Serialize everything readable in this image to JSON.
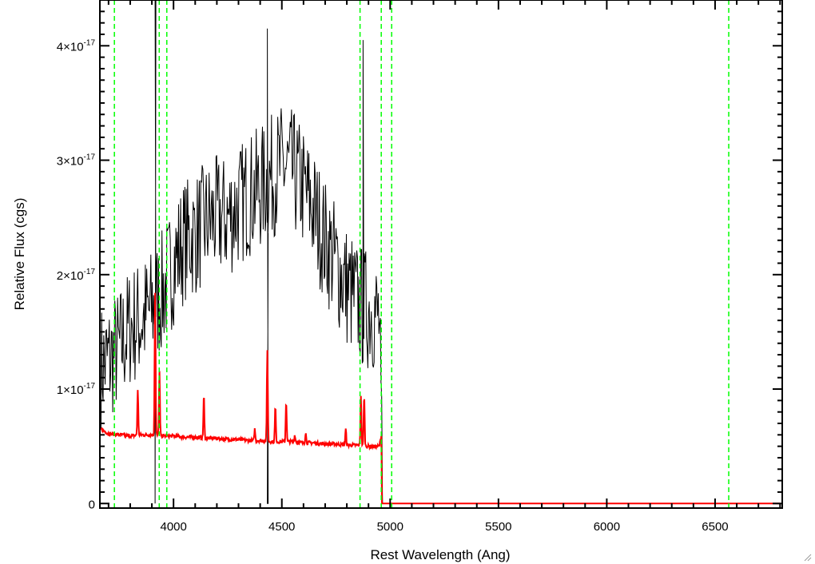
{
  "chart_data": {
    "type": "line",
    "title": "",
    "xlabel": "Rest Wavelength (Ang)",
    "ylabel": "Relative Flux (cgs)",
    "xlim": [
      3660,
      6810
    ],
    "ylim": [
      -4e-19,
      4.4e-17
    ],
    "x_ticks": [
      {
        "value": 4000,
        "label": "4000"
      },
      {
        "value": 4500,
        "label": "4500"
      },
      {
        "value": 5000,
        "label": "5000"
      },
      {
        "value": 5500,
        "label": "5500"
      },
      {
        "value": 6000,
        "label": "6000"
      },
      {
        "value": 6500,
        "label": "6500"
      }
    ],
    "y_ticks": [
      {
        "value": 0,
        "mantissa": "0",
        "exponent": ""
      },
      {
        "value": 1e-17,
        "mantissa": "1×10",
        "exponent": "-17"
      },
      {
        "value": 2e-17,
        "mantissa": "2×10",
        "exponent": "-17"
      },
      {
        "value": 3e-17,
        "mantissa": "3×10",
        "exponent": "-17"
      },
      {
        "value": 4e-17,
        "mantissa": "4×10",
        "exponent": "-17"
      }
    ],
    "grid": false,
    "series": [
      {
        "color": "#000000",
        "style": "noisy spectrum",
        "x": [
          3665,
          3700,
          3750,
          3800,
          3850,
          3900,
          3950,
          4000,
          4050,
          4100,
          4150,
          4200,
          4250,
          4300,
          4350,
          4400,
          4450,
          4500,
          4550,
          4600,
          4650,
          4700,
          4750,
          4800,
          4850,
          4880,
          4920,
          4950,
          4965,
          5000,
          5500,
          6000,
          6500,
          6800
        ],
        "y": [
          1.2e-17,
          1.25e-17,
          1.35e-17,
          1.55e-17,
          1.6e-17,
          1.7e-17,
          1.85e-17,
          2.1e-17,
          2.3e-17,
          2.35e-17,
          2.45e-17,
          2.5e-17,
          2.5e-17,
          2.6e-17,
          2.7e-17,
          2.75e-17,
          2.85e-17,
          2.95e-17,
          2.9e-17,
          2.75e-17,
          2.55e-17,
          2.3e-17,
          2.1e-17,
          1.9e-17,
          1.75e-17,
          1.7e-17,
          1.7e-17,
          1.6e-17,
          0,
          0,
          0,
          0,
          0,
          0
        ],
        "noise": 5.5e-18,
        "spikes": [
          {
            "x": 3915,
            "y": 4.4e-17
          },
          {
            "x": 3915,
            "y": 0.0
          },
          {
            "x": 4433,
            "y": 0.0
          },
          {
            "x": 4433,
            "y": 4.15e-17
          },
          {
            "x": 4875,
            "y": 4.05e-17
          }
        ]
      },
      {
        "color": "#ff0000",
        "style": "model fit",
        "x": [
          3665,
          3700,
          3750,
          3800,
          3850,
          3900,
          3950,
          4000,
          4050,
          4100,
          4150,
          4200,
          4250,
          4300,
          4350,
          4400,
          4450,
          4500,
          4550,
          4600,
          4650,
          4700,
          4750,
          4800,
          4850,
          4900,
          4950,
          4960,
          4962,
          5000,
          5500,
          6000,
          6500,
          6800
        ],
        "y": [
          6.5e-18,
          6.1e-18,
          6e-18,
          5.9e-18,
          6e-18,
          6e-18,
          5.9e-18,
          5.9e-18,
          5.8e-18,
          5.8e-18,
          5.7e-18,
          5.7e-18,
          5.6e-18,
          5.6e-18,
          5.5e-18,
          5.5e-18,
          5.4e-18,
          5.4e-18,
          5.4e-18,
          5.3e-18,
          5.3e-18,
          5.2e-18,
          5.2e-18,
          5.1e-18,
          5.1e-18,
          5e-18,
          5e-18,
          6e-18,
          0,
          0,
          0,
          0,
          0,
          0
        ],
        "emission_lines": [
          {
            "x": 3835,
            "peak": 1e-17
          },
          {
            "x": 3915,
            "peak": 1.85e-17
          },
          {
            "x": 3935,
            "peak": 1.15e-17
          },
          {
            "x": 4140,
            "peak": 9.5e-18
          },
          {
            "x": 4375,
            "peak": 6.5e-18
          },
          {
            "x": 4433,
            "peak": 1.35e-17
          },
          {
            "x": 4470,
            "peak": 8.5e-18
          },
          {
            "x": 4520,
            "peak": 9e-18
          },
          {
            "x": 4560,
            "peak": 6e-18
          },
          {
            "x": 4610,
            "peak": 6.2e-18
          },
          {
            "x": 4795,
            "peak": 6.5e-18
          },
          {
            "x": 4865,
            "peak": 9.5e-18
          },
          {
            "x": 4880,
            "peak": 9.5e-18
          }
        ]
      }
    ],
    "reference_lines": {
      "color": "#00ff00",
      "style": "dashed",
      "x": [
        3727,
        3934,
        3969,
        4861,
        4959,
        5007,
        6563
      ]
    }
  }
}
